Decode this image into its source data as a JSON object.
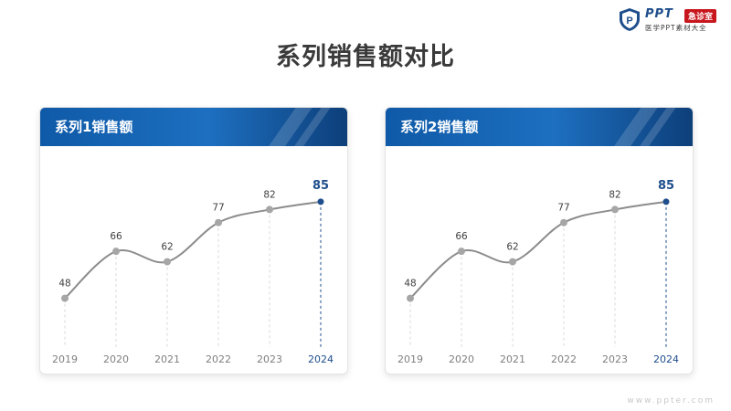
{
  "header": {
    "logo_text": "PPT",
    "logo_badge": "急诊室",
    "logo_subtitle": "医学PPT素材大全",
    "logo_mark": "P",
    "title": "系列销售额对比"
  },
  "colors": {
    "accent": "#0f5aa8",
    "line": "#8c8c8c",
    "marker": "#a6a6a6",
    "highlight": "#1e4e8c",
    "axis_label": "#7f7f7f"
  },
  "chart_data": [
    {
      "type": "line",
      "title": "系列1销售额",
      "categories": [
        "2019",
        "2020",
        "2021",
        "2022",
        "2023",
        "2024"
      ],
      "values": [
        48,
        66,
        62,
        77,
        82,
        85
      ],
      "highlight_index": 5,
      "ylim": [
        30,
        100
      ],
      "grid": false
    },
    {
      "type": "line",
      "title": "系列2销售额",
      "categories": [
        "2019",
        "2020",
        "2021",
        "2022",
        "2023",
        "2024"
      ],
      "values": [
        48,
        66,
        62,
        77,
        82,
        85
      ],
      "highlight_index": 5,
      "ylim": [
        30,
        100
      ],
      "grid": false
    }
  ],
  "footer": {
    "url": "www.ppter.com"
  }
}
